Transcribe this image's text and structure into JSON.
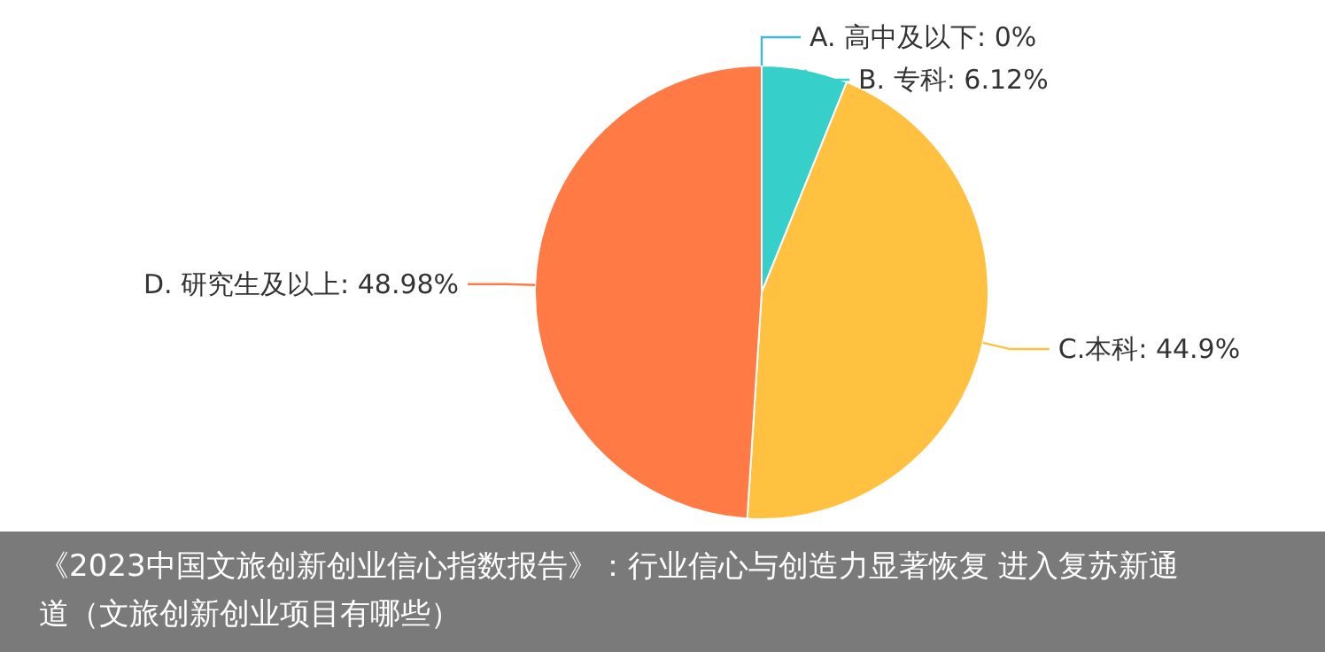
{
  "chart_data": {
    "type": "pie",
    "categories": [
      "A. 高中及以下",
      "B. 专科",
      "C.本科",
      "D. 研究生及以上"
    ],
    "values": [
      0,
      6.12,
      44.9,
      48.98
    ],
    "value_labels": [
      "0%",
      "6.12%",
      "44.9%",
      "48.98%"
    ],
    "colors": [
      "#3fb8d8",
      "#36cfc9",
      "#ffc13f",
      "#ff7a45"
    ],
    "annotations": [
      "《2023中国文旅创新创业信心指数报告》：行业信心与创造力显著恢复 进入复苏新通道（文旅创新创业项目有哪些）"
    ]
  }
}
